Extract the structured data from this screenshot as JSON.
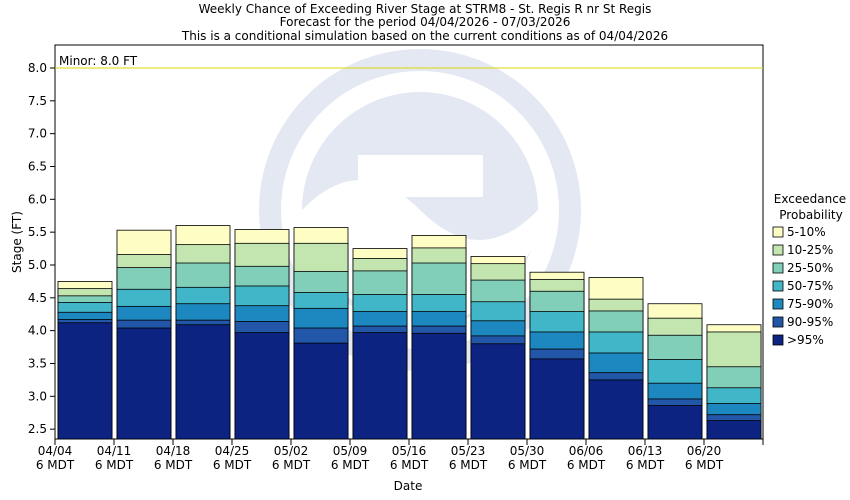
{
  "chart_data": {
    "type": "bar",
    "title_lines": [
      "Weekly Chance of Exceeding River Stage at STRM8 - St. Regis R nr St Regis",
      "Forecast for the period 04/04/2026 - 07/03/2026",
      "This is a conditional simulation based on the current conditions as of 04/04/2026"
    ],
    "xlabel": "Date",
    "ylabel": "Stage (FT)",
    "ylim": [
      2.35,
      8.35
    ],
    "yticks": [
      2.5,
      3.0,
      3.5,
      4.0,
      4.5,
      5.0,
      5.5,
      6.0,
      6.5,
      7.0,
      7.5,
      8.0
    ],
    "ytick_labels": [
      "2.5",
      "3.0",
      "3.5",
      "4.0",
      "4.5",
      "5.0",
      "5.5",
      "6.0",
      "6.5",
      "7.0",
      "7.5",
      "8.0"
    ],
    "categories": [
      "04/04",
      "04/11",
      "04/18",
      "04/25",
      "05/02",
      "05/09",
      "05/16",
      "05/23",
      "05/30",
      "06/06",
      "06/13",
      "06/20"
    ],
    "category_sublabel": "6 MDT",
    "legend_title_lines": [
      "Exceedance",
      "Probability"
    ],
    "legend_position": "right",
    "threshold": {
      "label": "Minor: 8.0 FT",
      "value": 8.0,
      "color": "#d8d800"
    },
    "series": [
      {
        "name": ">95%",
        "color": "#0c2382",
        "values": [
          4.12,
          4.04,
          4.09,
          3.97,
          3.81,
          3.97,
          3.96,
          3.8,
          3.57,
          3.25,
          2.86,
          2.63
        ]
      },
      {
        "name": "90-95%",
        "color": "#2256a8",
        "values": [
          4.17,
          4.16,
          4.16,
          4.14,
          4.04,
          4.07,
          4.07,
          3.92,
          3.72,
          3.36,
          2.96,
          2.72
        ]
      },
      {
        "name": "75-90%",
        "color": "#1d88bf",
        "values": [
          4.28,
          4.37,
          4.41,
          4.38,
          4.34,
          4.29,
          4.29,
          4.15,
          3.98,
          3.66,
          3.2,
          2.89
        ]
      },
      {
        "name": "50-75%",
        "color": "#40b6c8",
        "values": [
          4.43,
          4.63,
          4.66,
          4.68,
          4.58,
          4.55,
          4.55,
          4.44,
          4.29,
          3.98,
          3.56,
          3.13
        ]
      },
      {
        "name": "25-50%",
        "color": "#81cfb8",
        "values": [
          4.53,
          4.96,
          5.03,
          4.98,
          4.9,
          4.91,
          5.03,
          4.77,
          4.6,
          4.3,
          3.93,
          3.45
        ]
      },
      {
        "name": "10-25%",
        "color": "#c3e6b1",
        "values": [
          4.64,
          5.16,
          5.31,
          5.33,
          5.33,
          5.1,
          5.26,
          5.02,
          4.78,
          4.48,
          4.19,
          3.98
        ]
      },
      {
        "name": "5-10%",
        "color": "#fdfdc4",
        "values": [
          4.75,
          5.53,
          5.6,
          5.54,
          5.57,
          5.25,
          5.45,
          5.13,
          4.89,
          4.81,
          4.41,
          4.09
        ]
      }
    ],
    "grid": false
  }
}
